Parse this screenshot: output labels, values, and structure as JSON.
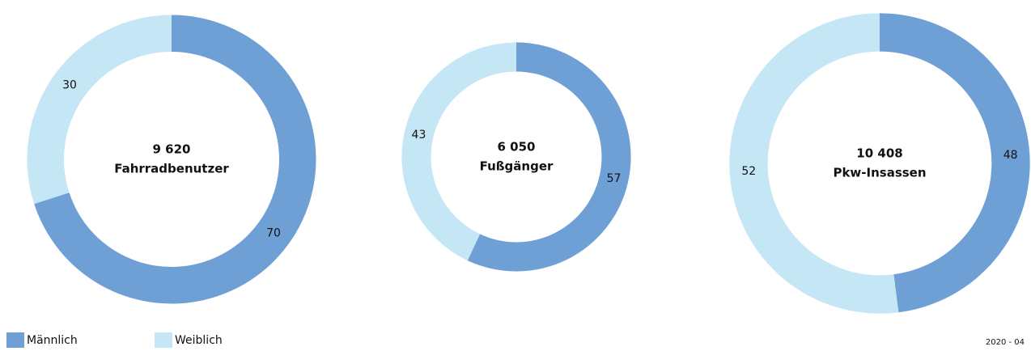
{
  "chart_data": [
    {
      "type": "donut",
      "total": {
        "value": 9620,
        "label": "9 620"
      },
      "title": "Fahrradbenutzer",
      "values": [
        70,
        30
      ]
    },
    {
      "type": "donut",
      "total": {
        "value": 6050,
        "label": "6 050"
      },
      "title": "Fußgänger",
      "values": [
        57,
        43
      ]
    },
    {
      "type": "donut",
      "total": {
        "value": 10408,
        "label": "10 408"
      },
      "title": "Pkw-Insassen",
      "values": [
        48,
        52
      ]
    }
  ],
  "legend": {
    "entries": [
      {
        "name": "Männlich",
        "color": "#6ea0d6"
      },
      {
        "name": "Weiblich",
        "color": "#c5e6f5"
      }
    ]
  },
  "footer": "2020 - 04"
}
